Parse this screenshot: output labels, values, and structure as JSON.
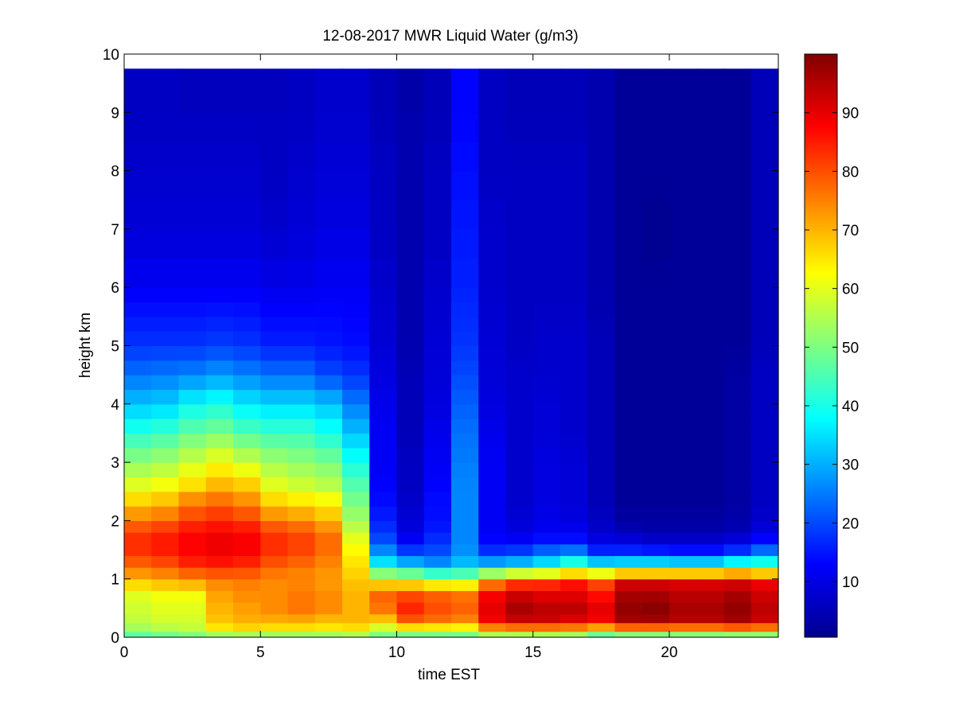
{
  "chart_data": {
    "type": "heatmap",
    "title": "12-08-2017 MWR Liquid Water (g/m3)",
    "xlabel": "time EST",
    "ylabel": "height km",
    "xlim": [
      0,
      24
    ],
    "ylim": [
      0,
      10
    ],
    "x_ticks": [
      0,
      5,
      10,
      15,
      20
    ],
    "y_ticks": [
      0,
      1,
      2,
      3,
      4,
      5,
      6,
      7,
      8,
      9,
      10
    ],
    "colorbar": {
      "colormap": "jet",
      "range": [
        0.5,
        100
      ],
      "ticks": [
        10,
        20,
        30,
        40,
        50,
        60,
        70,
        80,
        90
      ]
    },
    "time_bins": [
      0,
      1,
      2,
      3,
      4,
      5,
      6,
      7,
      8,
      9,
      10,
      11,
      12,
      13,
      14,
      15,
      16,
      17,
      18,
      19,
      20,
      21,
      22,
      23
    ],
    "bin_width_hours": 1,
    "height_bins_km": [
      0.0,
      0.1,
      0.25,
      0.4,
      0.6,
      0.8,
      1.0,
      1.2,
      1.4,
      1.6,
      1.8,
      2.0,
      2.25,
      2.5,
      2.75,
      3.0,
      3.25,
      3.5,
      3.75,
      4.0,
      4.25,
      4.5,
      4.75,
      5.0,
      5.25,
      5.5,
      5.75,
      6.0,
      6.5,
      7.0,
      7.5,
      8.0,
      8.5,
      9.0,
      9.75
    ],
    "height_profile_points_km": [
      0,
      0.1,
      0.25,
      0.5,
      0.75,
      1.0,
      1.2,
      1.4,
      1.6,
      1.8,
      2.0,
      2.3,
      2.6,
      3.0,
      3.5,
      4.0,
      4.5,
      5.0,
      6.0,
      7.0,
      8.0,
      9.0,
      9.75
    ],
    "profiles": [
      [
        42,
        52,
        56,
        58,
        60,
        70,
        76,
        82,
        84,
        82,
        76,
        68,
        60,
        52,
        42,
        32,
        24,
        18,
        12,
        9,
        8,
        7,
        7
      ],
      [
        44,
        54,
        58,
        60,
        62,
        72,
        78,
        84,
        86,
        84,
        78,
        70,
        62,
        54,
        44,
        33,
        25,
        18,
        12,
        9,
        8,
        7,
        7
      ],
      [
        45,
        56,
        58,
        60,
        62,
        74,
        82,
        87,
        88,
        87,
        82,
        76,
        66,
        58,
        48,
        38,
        26,
        18,
        12,
        9,
        8,
        7,
        6
      ],
      [
        45,
        62,
        68,
        70,
        72,
        75,
        84,
        88,
        90,
        88,
        84,
        78,
        70,
        62,
        50,
        40,
        28,
        19,
        12,
        9,
        8,
        7,
        6
      ],
      [
        45,
        64,
        70,
        72,
        74,
        76,
        82,
        87,
        89,
        87,
        82,
        75,
        68,
        58,
        46,
        36,
        26,
        18,
        12,
        9,
        8,
        7,
        6
      ],
      [
        45,
        62,
        70,
        74,
        74,
        74,
        78,
        82,
        84,
        82,
        76,
        68,
        60,
        54,
        44,
        34,
        24,
        16,
        11,
        8,
        7,
        7,
        6
      ],
      [
        45,
        62,
        70,
        76,
        76,
        74,
        76,
        80,
        82,
        80,
        74,
        66,
        58,
        52,
        44,
        34,
        24,
        16,
        11,
        9,
        8,
        7,
        7
      ],
      [
        45,
        62,
        68,
        74,
        74,
        72,
        74,
        76,
        78,
        76,
        70,
        64,
        56,
        50,
        40,
        32,
        20,
        15,
        12,
        10,
        9,
        8,
        8
      ],
      [
        48,
        62,
        70,
        70,
        70,
        68,
        66,
        64,
        62,
        58,
        54,
        50,
        46,
        40,
        32,
        25,
        18,
        14,
        12,
        10,
        9,
        8,
        8
      ],
      [
        48,
        52,
        66,
        76,
        78,
        62,
        40,
        30,
        22,
        18,
        16,
        14,
        13,
        12,
        12,
        11,
        10,
        9,
        8,
        7,
        7,
        6,
        6
      ],
      [
        45,
        54,
        78,
        84,
        80,
        60,
        36,
        22,
        14,
        10,
        9,
        8,
        7,
        7,
        6,
        6,
        6,
        5,
        5,
        5,
        5,
        5,
        4
      ],
      [
        45,
        54,
        76,
        80,
        78,
        56,
        30,
        22,
        18,
        16,
        14,
        14,
        13,
        12,
        11,
        10,
        9,
        9,
        8,
        7,
        7,
        6,
        6
      ],
      [
        45,
        54,
        74,
        78,
        76,
        56,
        34,
        28,
        26,
        26,
        26,
        26,
        26,
        25,
        24,
        22,
        20,
        18,
        16,
        15,
        14,
        13,
        13
      ],
      [
        48,
        62,
        88,
        90,
        88,
        70,
        36,
        20,
        14,
        12,
        12,
        12,
        12,
        12,
        11,
        10,
        9,
        9,
        8,
        8,
        7,
        7,
        7
      ],
      [
        48,
        62,
        92,
        96,
        92,
        78,
        38,
        22,
        14,
        10,
        9,
        8,
        8,
        8,
        8,
        8,
        8,
        7,
        7,
        7,
        7,
        6,
        6
      ],
      [
        48,
        62,
        92,
        94,
        90,
        80,
        40,
        28,
        16,
        12,
        11,
        10,
        10,
        10,
        9,
        9,
        8,
        8,
        7,
        7,
        7,
        6,
        6
      ],
      [
        46,
        62,
        90,
        94,
        90,
        84,
        48,
        32,
        16,
        12,
        10,
        9,
        9,
        9,
        8,
        8,
        8,
        8,
        7,
        7,
        7,
        6,
        6
      ],
      [
        40,
        56,
        88,
        90,
        86,
        78,
        44,
        20,
        12,
        8,
        7,
        6,
        6,
        6,
        6,
        6,
        6,
        6,
        5,
        5,
        5,
        5,
        5
      ],
      [
        42,
        60,
        96,
        98,
        96,
        90,
        46,
        20,
        12,
        6,
        4,
        3,
        3,
        3,
        3,
        3,
        3,
        3,
        3,
        3,
        3,
        3,
        3
      ],
      [
        42,
        60,
        96,
        99,
        96,
        90,
        46,
        20,
        10,
        5,
        4,
        3,
        3,
        3,
        3,
        3,
        3,
        3,
        3,
        2,
        3,
        3,
        3
      ],
      [
        42,
        60,
        94,
        96,
        94,
        90,
        46,
        18,
        10,
        5,
        4,
        3,
        3,
        3,
        3,
        3,
        3,
        3,
        3,
        3,
        3,
        3,
        3
      ],
      [
        42,
        60,
        94,
        96,
        94,
        90,
        46,
        18,
        10,
        5,
        4,
        3,
        3,
        3,
        3,
        3,
        3,
        3,
        3,
        3,
        3,
        3,
        3
      ],
      [
        42,
        62,
        96,
        98,
        96,
        90,
        52,
        22,
        12,
        6,
        5,
        4,
        4,
        4,
        4,
        4,
        4,
        3,
        3,
        3,
        3,
        3,
        3
      ],
      [
        42,
        62,
        92,
        94,
        92,
        88,
        48,
        30,
        16,
        10,
        8,
        7,
        7,
        7,
        7,
        7,
        7,
        6,
        6,
        6,
        6,
        6,
        6
      ]
    ]
  }
}
